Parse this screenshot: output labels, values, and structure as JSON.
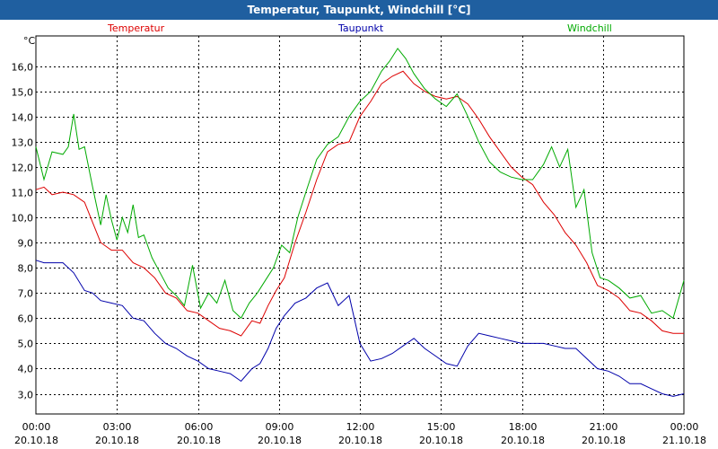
{
  "chart_data": {
    "type": "line",
    "title": "Temperatur, Taupunkt, Windchill [°C]",
    "unit": "°C",
    "ylim": [
      2.2,
      17.2
    ],
    "y_ticks": [
      3,
      4,
      5,
      6,
      7,
      8,
      9,
      10,
      11,
      12,
      13,
      14,
      15,
      16
    ],
    "y_tick_labels": [
      "3,0",
      "4,0",
      "5,0",
      "6,0",
      "7,0",
      "8,0",
      "9,0",
      "10,0",
      "11,0",
      "12,0",
      "13,0",
      "14,0",
      "15,0",
      "16,0"
    ],
    "xlim": [
      0,
      24
    ],
    "x_ticks": [
      0,
      3,
      6,
      9,
      12,
      15,
      18,
      21,
      24
    ],
    "x_tick_times": [
      "00:00",
      "03:00",
      "06:00",
      "09:00",
      "12:00",
      "15:00",
      "18:00",
      "21:00",
      "00:00"
    ],
    "x_tick_dates": [
      "20.10.18",
      "20.10.18",
      "20.10.18",
      "20.10.18",
      "20.10.18",
      "20.10.18",
      "20.10.18",
      "20.10.18",
      "21.10.18"
    ],
    "grid": true,
    "series": [
      {
        "name": "Temperatur",
        "color": "#dd0000",
        "x": [
          0,
          0.3,
          0.6,
          1.0,
          1.4,
          1.8,
          2.1,
          2.4,
          2.8,
          3.2,
          3.6,
          4.0,
          4.4,
          4.8,
          5.2,
          5.6,
          6.0,
          6.4,
          6.8,
          7.2,
          7.6,
          8.0,
          8.3,
          8.6,
          8.9,
          9.2,
          9.6,
          10.0,
          10.4,
          10.8,
          11.2,
          11.6,
          12.0,
          12.4,
          12.8,
          13.2,
          13.6,
          14.0,
          14.4,
          14.8,
          15.2,
          15.6,
          16.0,
          16.4,
          16.8,
          17.2,
          17.6,
          18.0,
          18.4,
          18.8,
          19.2,
          19.6,
          20.0,
          20.4,
          20.8,
          21.2,
          21.6,
          22.0,
          22.4,
          22.8,
          23.2,
          23.6,
          24.0
        ],
        "values": [
          11.1,
          11.2,
          10.9,
          11.0,
          10.9,
          10.6,
          9.8,
          9.0,
          8.7,
          8.7,
          8.2,
          8.0,
          7.6,
          7.0,
          6.8,
          6.3,
          6.2,
          5.9,
          5.6,
          5.5,
          5.3,
          5.9,
          5.8,
          6.5,
          7.1,
          7.6,
          9.0,
          10.2,
          11.5,
          12.6,
          12.9,
          13.0,
          14.0,
          14.6,
          15.3,
          15.6,
          15.8,
          15.3,
          15.0,
          14.8,
          14.7,
          14.8,
          14.5,
          13.9,
          13.2,
          12.6,
          12.0,
          11.6,
          11.3,
          10.6,
          10.1,
          9.4,
          8.9,
          8.2,
          7.3,
          7.1,
          6.8,
          6.3,
          6.2,
          5.9,
          5.5,
          5.4,
          5.4
        ]
      },
      {
        "name": "Taupunkt",
        "color": "#0000aa",
        "x": [
          0,
          0.3,
          0.6,
          1.0,
          1.4,
          1.8,
          2.1,
          2.4,
          2.8,
          3.2,
          3.6,
          4.0,
          4.4,
          4.8,
          5.2,
          5.6,
          6.0,
          6.4,
          6.8,
          7.2,
          7.6,
          8.0,
          8.3,
          8.6,
          8.9,
          9.2,
          9.6,
          10.0,
          10.4,
          10.8,
          11.2,
          11.6,
          12.0,
          12.4,
          12.8,
          13.2,
          13.6,
          14.0,
          14.4,
          14.8,
          15.2,
          15.6,
          16.0,
          16.4,
          16.8,
          17.2,
          17.6,
          18.0,
          18.4,
          18.8,
          19.2,
          19.6,
          20.0,
          20.4,
          20.8,
          21.2,
          21.6,
          22.0,
          22.4,
          22.8,
          23.2,
          23.6,
          24.0
        ],
        "values": [
          8.3,
          8.2,
          8.2,
          8.2,
          7.8,
          7.1,
          7.0,
          6.7,
          6.6,
          6.5,
          6.0,
          5.9,
          5.4,
          5.0,
          4.8,
          4.5,
          4.3,
          4.0,
          3.9,
          3.8,
          3.5,
          4.0,
          4.2,
          4.8,
          5.6,
          6.1,
          6.6,
          6.8,
          7.2,
          7.4,
          6.5,
          6.9,
          5.0,
          4.3,
          4.4,
          4.6,
          4.9,
          5.2,
          4.8,
          4.5,
          4.2,
          4.1,
          4.9,
          5.4,
          5.3,
          5.2,
          5.1,
          5.0,
          5.0,
          5.0,
          4.9,
          4.8,
          4.8,
          4.4,
          4.0,
          3.9,
          3.7,
          3.4,
          3.4,
          3.2,
          3.0,
          2.9,
          3.0
        ]
      },
      {
        "name": "Windchill",
        "color": "#00aa00",
        "x": [
          0,
          0.3,
          0.6,
          1.0,
          1.2,
          1.4,
          1.6,
          1.8,
          2.1,
          2.4,
          2.6,
          2.8,
          3.0,
          3.2,
          3.4,
          3.6,
          3.8,
          4.0,
          4.3,
          4.6,
          4.9,
          5.2,
          5.5,
          5.8,
          6.1,
          6.4,
          6.7,
          7.0,
          7.3,
          7.6,
          7.9,
          8.2,
          8.5,
          8.8,
          9.1,
          9.4,
          9.7,
          10.0,
          10.4,
          10.8,
          11.2,
          11.6,
          12.0,
          12.4,
          12.8,
          13.1,
          13.4,
          13.7,
          14.0,
          14.4,
          14.8,
          15.2,
          15.6,
          16.0,
          16.4,
          16.8,
          17.2,
          17.6,
          18.0,
          18.4,
          18.8,
          19.1,
          19.4,
          19.7,
          20.0,
          20.3,
          20.6,
          20.9,
          21.2,
          21.6,
          22.0,
          22.4,
          22.8,
          23.2,
          23.6,
          24.0
        ],
        "values": [
          12.8,
          11.5,
          12.6,
          12.5,
          12.8,
          14.1,
          12.7,
          12.8,
          11.2,
          9.7,
          10.9,
          9.9,
          9.1,
          10.0,
          9.4,
          10.5,
          9.2,
          9.3,
          8.4,
          7.8,
          7.2,
          6.9,
          6.5,
          8.1,
          6.4,
          7.0,
          6.6,
          7.5,
          6.3,
          6.0,
          6.6,
          7.0,
          7.5,
          8.0,
          8.9,
          8.6,
          10.0,
          11.0,
          12.3,
          12.9,
          13.2,
          14.0,
          14.6,
          15.0,
          15.8,
          16.2,
          16.7,
          16.3,
          15.7,
          15.1,
          14.7,
          14.4,
          14.9,
          14.0,
          13.0,
          12.2,
          11.8,
          11.6,
          11.5,
          11.5,
          12.1,
          12.8,
          12.0,
          12.7,
          10.4,
          11.1,
          8.6,
          7.6,
          7.5,
          7.2,
          6.8,
          6.9,
          6.2,
          6.3,
          6.0,
          7.5
        ]
      }
    ]
  }
}
